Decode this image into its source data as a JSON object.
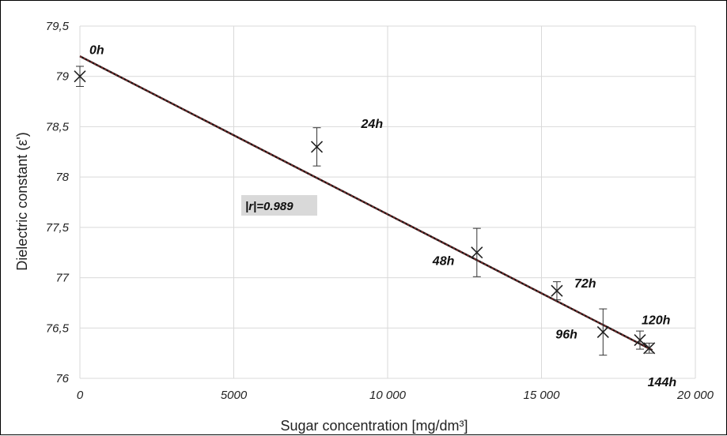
{
  "chart_data": {
    "type": "scatter",
    "title": "",
    "xlabel": "Sugar concentration [mg/dm³]",
    "ylabel": "Dielectric constant (ε')",
    "xlim": [
      0,
      20000
    ],
    "ylim": [
      76,
      79.5
    ],
    "x_ticks": [
      {
        "value": 0,
        "label": "0"
      },
      {
        "value": 5000,
        "label": "5000"
      },
      {
        "value": 10000,
        "label": "10 000"
      },
      {
        "value": 15000,
        "label": "15 000"
      },
      {
        "value": 20000,
        "label": "20 000"
      }
    ],
    "y_ticks": [
      {
        "value": 76,
        "label": "76"
      },
      {
        "value": 76.5,
        "label": "76,5"
      },
      {
        "value": 77,
        "label": "77"
      },
      {
        "value": 77.5,
        "label": "77,5"
      },
      {
        "value": 78,
        "label": "78"
      },
      {
        "value": 78.5,
        "label": "78,5"
      },
      {
        "value": 79,
        "label": "79"
      },
      {
        "value": 79.5,
        "label": "79,5"
      }
    ],
    "grid": true,
    "marker": "x",
    "points": [
      {
        "label": "0h",
        "x": 0,
        "y": 79.0,
        "err": 0.1
      },
      {
        "label": "24h",
        "x": 7700,
        "y": 78.3,
        "err": 0.19
      },
      {
        "label": "48h",
        "x": 12900,
        "y": 77.25,
        "err": 0.24
      },
      {
        "label": "72h",
        "x": 15500,
        "y": 76.87,
        "err": 0.09
      },
      {
        "label": "96h",
        "x": 17000,
        "y": 76.46,
        "err": 0.23
      },
      {
        "label": "120h",
        "x": 18200,
        "y": 76.38,
        "err": 0.09
      },
      {
        "label": "144h",
        "x": 18500,
        "y": 76.3,
        "err": 0.05
      }
    ],
    "trendline": {
      "x": [
        0,
        18600
      ],
      "y": [
        79.2,
        76.28
      ],
      "color": "#6b2b2b",
      "style": "dashed"
    },
    "annotation": {
      "prefix": "|",
      "variable": "r",
      "suffix": "|=0.989",
      "background": "#d9d9d9"
    },
    "colors": {
      "grid": "#d9d9d9",
      "marker": "#222222",
      "errorbar": "#333333"
    }
  }
}
